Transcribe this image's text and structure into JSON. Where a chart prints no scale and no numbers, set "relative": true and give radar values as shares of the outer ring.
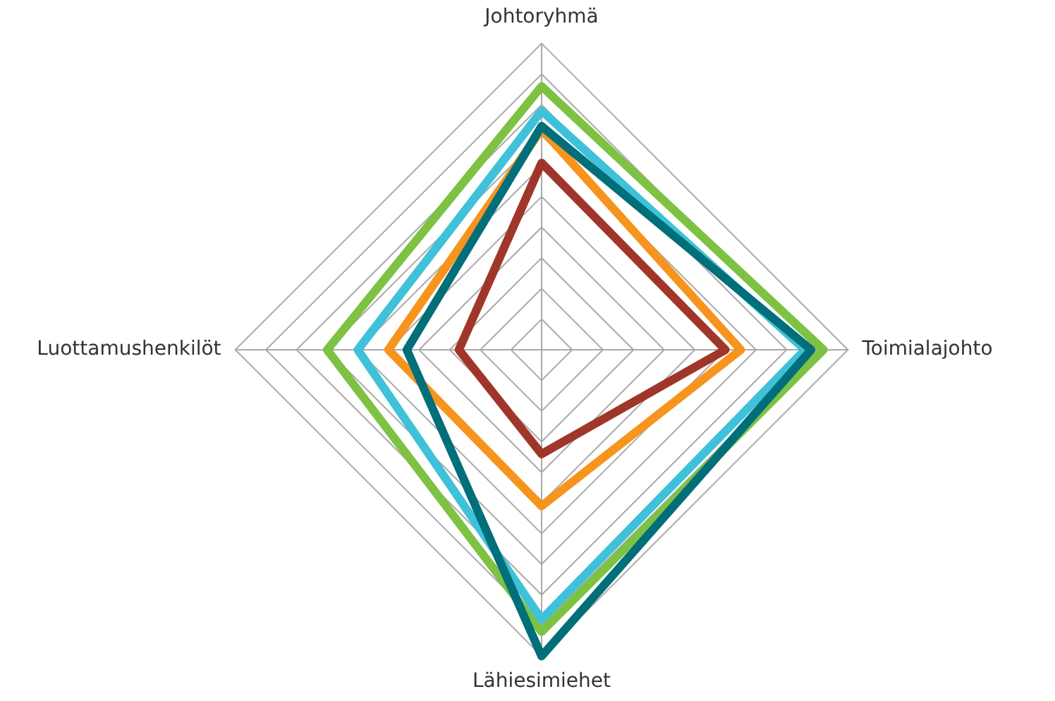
{
  "chart_data": {
    "type": "radar",
    "relative": true,
    "grid": true,
    "categories": [
      "Johtoryhmä",
      "Toimialajohto",
      "Lähiesimiehet",
      "Luottamushenkilöt"
    ],
    "series": [
      {
        "color": "#006f7a",
        "values": [
          0.73,
          0.88,
          1.0,
          0.44
        ]
      },
      {
        "color": "#3fc1d9",
        "values": [
          0.78,
          0.86,
          0.88,
          0.6
        ]
      },
      {
        "color": "#7dc242",
        "values": [
          0.86,
          0.92,
          0.92,
          0.7
        ]
      },
      {
        "color": "#f7941d",
        "values": [
          0.72,
          0.65,
          0.51,
          0.5
        ]
      },
      {
        "color": "#a0362a",
        "values": [
          0.61,
          0.6,
          0.34,
          0.27
        ]
      }
    ]
  }
}
